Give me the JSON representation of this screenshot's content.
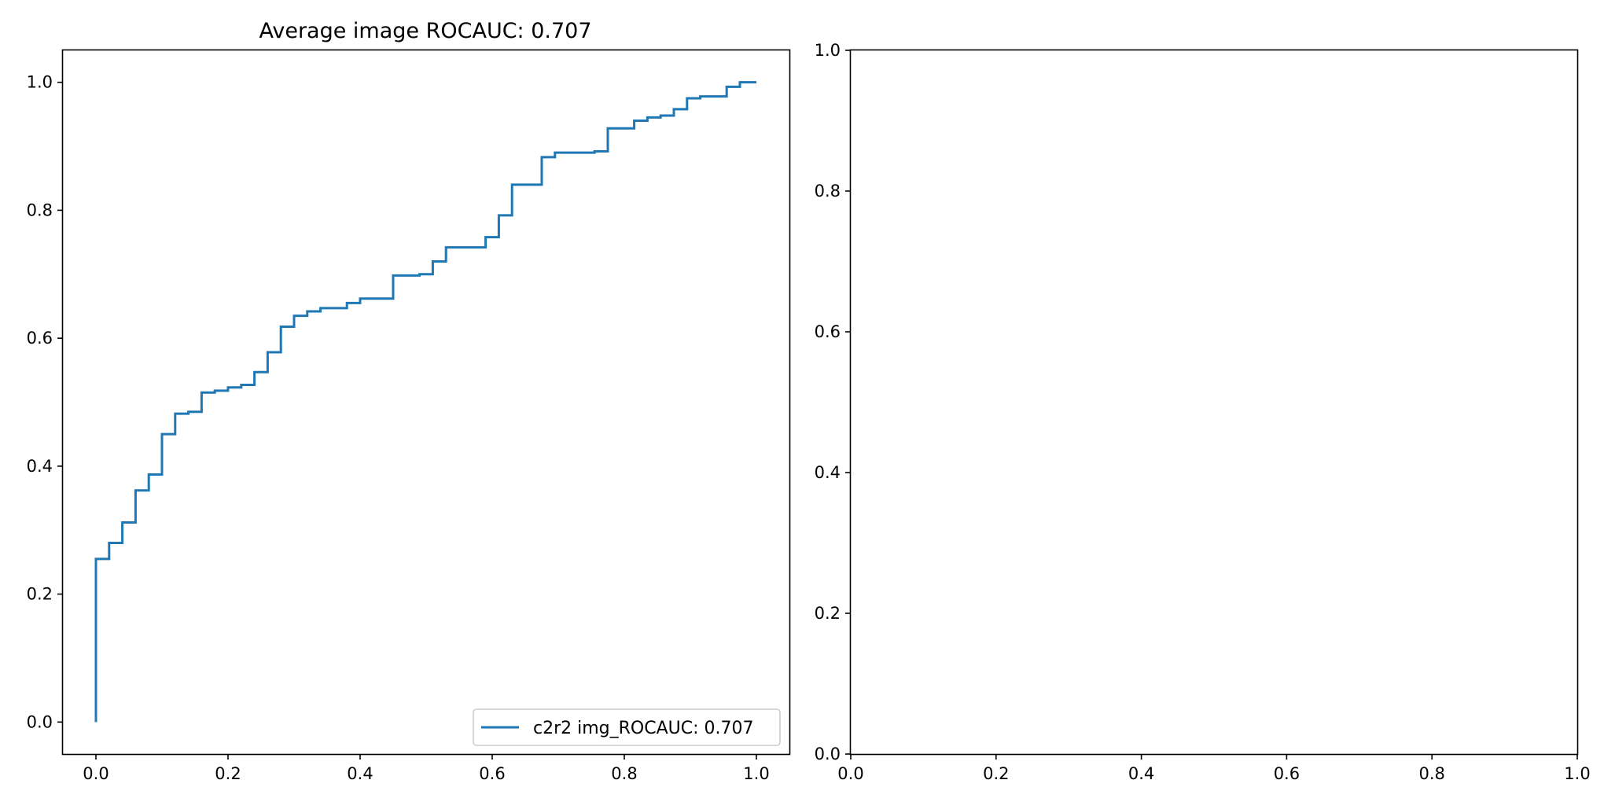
{
  "chart_data": [
    {
      "type": "line",
      "title": "Average image ROCAUC: 0.707",
      "xlabel": "",
      "ylabel": "",
      "xlim": [
        -0.05,
        1.05
      ],
      "ylim": [
        -0.05,
        1.05
      ],
      "xticks": [
        0.0,
        0.2,
        0.4,
        0.6,
        0.8,
        1.0
      ],
      "yticks": [
        0.0,
        0.2,
        0.4,
        0.6,
        0.8,
        1.0
      ],
      "xtick_labels": [
        "0.0",
        "0.2",
        "0.4",
        "0.6",
        "0.8",
        "1.0"
      ],
      "ytick_labels": [
        "0.0",
        "0.2",
        "0.4",
        "0.6",
        "0.8",
        "1.0"
      ],
      "grid": false,
      "legend_position": "lower-right",
      "series": [
        {
          "name": "c2r2 img_ROCAUC: 0.707",
          "color": "#1f77b4",
          "step": true,
          "x": [
            0.0,
            0.0,
            0.02,
            0.04,
            0.06,
            0.08,
            0.1,
            0.12,
            0.14,
            0.16,
            0.18,
            0.2,
            0.22,
            0.24,
            0.26,
            0.28,
            0.3,
            0.32,
            0.34,
            0.38,
            0.4,
            0.45,
            0.49,
            0.51,
            0.53,
            0.59,
            0.61,
            0.63,
            0.675,
            0.695,
            0.755,
            0.775,
            0.815,
            0.835,
            0.855,
            0.875,
            0.895,
            0.915,
            0.955,
            0.975,
            1.0
          ],
          "y": [
            0.0,
            0.255,
            0.28,
            0.312,
            0.362,
            0.387,
            0.45,
            0.482,
            0.485,
            0.515,
            0.518,
            0.523,
            0.527,
            0.547,
            0.578,
            0.618,
            0.635,
            0.642,
            0.647,
            0.655,
            0.662,
            0.698,
            0.7,
            0.72,
            0.742,
            0.758,
            0.792,
            0.84,
            0.883,
            0.89,
            0.892,
            0.928,
            0.94,
            0.945,
            0.948,
            0.958,
            0.975,
            0.978,
            0.993,
            1.0,
            1.0
          ]
        }
      ]
    },
    {
      "type": "line",
      "title": "",
      "xlabel": "",
      "ylabel": "",
      "xlim": [
        0.0,
        1.0
      ],
      "ylim": [
        0.0,
        1.0
      ],
      "xticks": [
        0.0,
        0.2,
        0.4,
        0.6,
        0.8,
        1.0
      ],
      "yticks": [
        0.0,
        0.2,
        0.4,
        0.6,
        0.8,
        1.0
      ],
      "xtick_labels": [
        "0.0",
        "0.2",
        "0.4",
        "0.6",
        "0.8",
        "1.0"
      ],
      "ytick_labels": [
        "0.0",
        "0.2",
        "0.4",
        "0.6",
        "0.8",
        "1.0"
      ],
      "grid": false,
      "series": []
    }
  ]
}
